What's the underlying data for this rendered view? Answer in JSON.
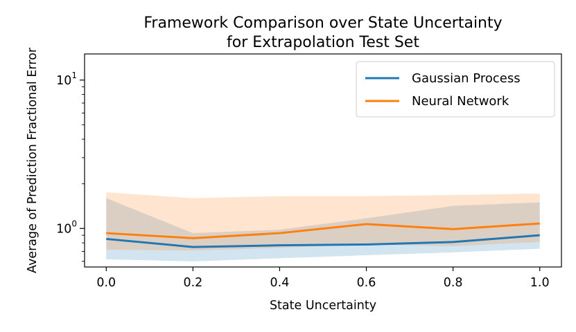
{
  "chart_data": {
    "type": "line",
    "title_line1": "Framework Comparison over State Uncertainty",
    "title_line2": "for Extrapolation Test Set",
    "xlabel": "State Uncertainty",
    "ylabel": "Average of Prediction Fractional Error",
    "x": [
      0.0,
      0.2,
      0.4,
      0.6,
      0.8,
      1.0
    ],
    "x_tick_labels": [
      "0.0",
      "0.2",
      "0.4",
      "0.6",
      "0.8",
      "1.0"
    ],
    "xlim": [
      -0.05,
      1.05
    ],
    "ylim": [
      0.55,
      15
    ],
    "y_scale": "log",
    "y_major_ticks": [
      {
        "value": 1,
        "base": "10",
        "exp": "0"
      },
      {
        "value": 10,
        "base": "10",
        "exp": "1"
      }
    ],
    "y_minor_ticks": [
      0.6,
      0.7,
      0.8,
      0.9,
      2,
      3,
      4,
      5,
      6,
      7,
      8,
      9
    ],
    "grid": false,
    "legend_position": "top-right",
    "series": [
      {
        "name": "Gaussian Process",
        "color": "#1f77b4",
        "band_color": "#1f77b4",
        "band_opacity": 0.2,
        "values": [
          0.85,
          0.75,
          0.77,
          0.78,
          0.81,
          0.9
        ],
        "upper": [
          1.6,
          0.93,
          0.98,
          1.17,
          1.42,
          1.5
        ],
        "lower": [
          0.62,
          0.6,
          0.63,
          0.66,
          0.69,
          0.73
        ]
      },
      {
        "name": "Neural Network",
        "color": "#ff7f0e",
        "band_color": "#ff7f0e",
        "band_opacity": 0.2,
        "values": [
          0.93,
          0.86,
          0.93,
          1.07,
          0.99,
          1.08
        ],
        "upper": [
          1.75,
          1.6,
          1.65,
          1.65,
          1.68,
          1.72
        ],
        "lower": [
          0.72,
          0.71,
          0.74,
          0.78,
          0.76,
          0.81
        ]
      }
    ]
  }
}
